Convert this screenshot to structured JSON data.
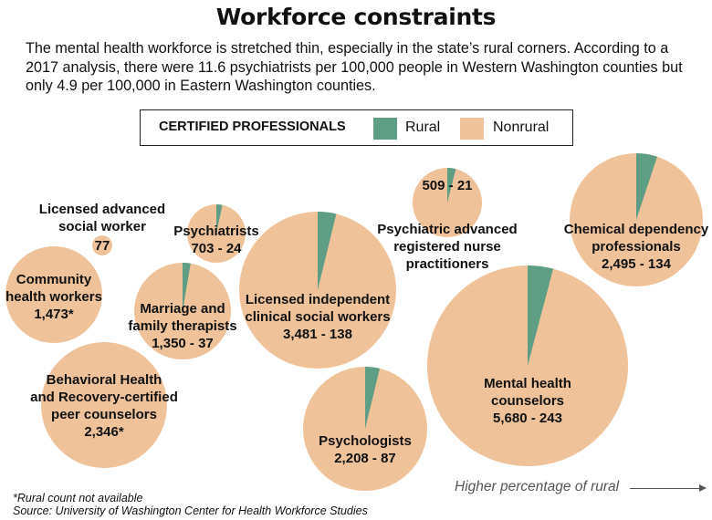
{
  "title": "Workforce constraints",
  "subtitle": "The mental health workforce is stretched thin, especially in the state’s rural corners. According to a 2017 analysis, there were 11.6 psychiatrists per 100,000 people in Western Washington counties but only 4.9 per 100,000 in Eastern Washington counties.",
  "legend": {
    "title": "CERTIFIED PROFESSIONALS",
    "rural_label": "Rural",
    "nonrural_label": "Nonrural"
  },
  "colors": {
    "rural": "#5e9e84",
    "nonrural": "#f0c29a",
    "text": "#111111"
  },
  "chart_data": {
    "type": "pie",
    "series_names": [
      "Rural",
      "Nonrural"
    ],
    "items": [
      {
        "name": "Licensed advanced social worker",
        "lines": [
          "Licensed advanced",
          "social worker"
        ],
        "value_label": "77",
        "nonrural": 77,
        "rural": null
      },
      {
        "name": "Community health workers",
        "lines": [
          "Community",
          "health workers"
        ],
        "value_label": "1,473*",
        "nonrural": 1473,
        "rural": null
      },
      {
        "name": "Behavioral Health and Recovery-certified peer counselors",
        "lines": [
          "Behavioral Health",
          "and Recovery-certified",
          "peer counselors"
        ],
        "value_label": "2,346*",
        "nonrural": 2346,
        "rural": null
      },
      {
        "name": "Psychiatrists",
        "lines": [
          "Psychiatrists"
        ],
        "value_label": "703 - 24",
        "nonrural": 703,
        "rural": 24
      },
      {
        "name": "Marriage and family therapists",
        "lines": [
          "Marriage and",
          "family therapists"
        ],
        "value_label": "1,350 - 37",
        "nonrural": 1350,
        "rural": 37
      },
      {
        "name": "Licensed independent clinical social workers",
        "lines": [
          "Licensed independent",
          "clinical social workers"
        ],
        "value_label": "3,481 - 138",
        "nonrural": 3481,
        "rural": 138
      },
      {
        "name": "Psychologists",
        "lines": [
          "Psychologists"
        ],
        "value_label": "2,208 - 87",
        "nonrural": 2208,
        "rural": 87
      },
      {
        "name": "Psychiatric advanced registered nurse practitioners",
        "lines": [
          "Psychiatric advanced",
          "registered nurse",
          "practitioners"
        ],
        "value_label": "509 - 21",
        "nonrural": 509,
        "rural": 21
      },
      {
        "name": "Mental health counselors",
        "lines": [
          "Mental health",
          "counselors"
        ],
        "value_label": "5,680 - 243",
        "nonrural": 5680,
        "rural": 243
      },
      {
        "name": "Chemical dependency professionals",
        "lines": [
          "Chemical dependency",
          "professionals"
        ],
        "value_label": "2,495 - 134",
        "nonrural": 2495,
        "rural": 134
      }
    ]
  },
  "axis_note": "Higher percentage of rural",
  "footnotes": {
    "rural_note": "*Rural count not available",
    "source": "Source: University of Washington Center for Health Workforce Studies"
  }
}
